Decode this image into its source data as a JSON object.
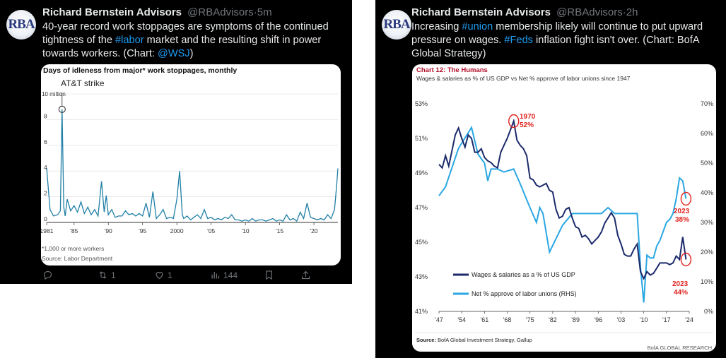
{
  "tweet1": {
    "avatar_text": "RBA",
    "author_name": "Richard Bernstein Advisors",
    "handle": "@RBAdvisors",
    "separator": "·",
    "time": "5m",
    "text_parts": [
      "40-year record work stoppages are symptoms of the continued tightness of the ",
      "#labor",
      " market and the resulting shift in power towards workers.  (Chart: ",
      "@WSJ",
      ")"
    ],
    "retweets": "1",
    "likes": "1",
    "views": "144",
    "chart": {
      "title": "Days of idleness from major* work stoppages, monthly",
      "annotation": "AT&T strike",
      "unit_label": "10 million",
      "y_ticks": [
        "8",
        "6",
        "4",
        "2",
        "0"
      ],
      "x_ticks": [
        "1981",
        "'85",
        "'90",
        "'95",
        "2000",
        "'05",
        "'10",
        "'15",
        "'20"
      ],
      "footnote": "*1,000 or more workers",
      "source": "Source: Labor Department"
    }
  },
  "tweet2": {
    "avatar_text": "RBA",
    "author_name": "Richard Bernstein Advisors",
    "handle": "@RBAdvisors",
    "separator": "·",
    "time": "2h",
    "text_parts": [
      "Increasing ",
      "#union",
      " membership likely will continue to put upward pressure on wages. ",
      "#Feds",
      " inflation fight isn't over. (Chart: BofA Global Strategy)"
    ],
    "chart": {
      "title": "Chart 12: The Humans",
      "subtitle": "Wages & salaries as % of US GDP vs Net % approve of labor unions since 1947",
      "left_ticks": [
        "53%",
        "51%",
        "49%",
        "47%",
        "45%",
        "43%",
        "41%"
      ],
      "right_ticks": [
        "70%",
        "60%",
        "50%",
        "40%",
        "30%",
        "20%",
        "10%",
        "0%"
      ],
      "x_ticks": [
        "'47",
        "'54",
        "'61",
        "'68",
        "'75",
        "'82",
        "'89",
        "'96",
        "'03",
        "'10",
        "'17",
        "'24"
      ],
      "callout_1970_year": "1970",
      "callout_1970_value": "52%",
      "callout_2023_union_year": "2023",
      "callout_2023_union_value": "38%",
      "callout_2023_wage_year": "2023",
      "callout_2023_wage_value": "44%",
      "legend_wages": "Wages & salaries as a % of US GDP",
      "legend_unions": "Net % approve of labor unions (RHS)",
      "source_label": "Source:",
      "source_text": "BofA Global Investment Strategy, Gallup",
      "brand": "BofA GLOBAL RESEARCH"
    }
  },
  "colors": {
    "background": "#000000",
    "text": "#e7e9ea",
    "muted": "#71767b",
    "link": "#1d9bf0",
    "chart1_line": "#1f7fa6",
    "wages_line": "#1b2a6b",
    "unions_line": "#2aa7e2",
    "callout_red": "#e0231f"
  },
  "chart_data": [
    {
      "type": "line",
      "title": "Days of idleness from major* work stoppages, monthly",
      "ylabel": "10 million",
      "ylim": [
        0,
        10
      ],
      "x_range": [
        1981,
        2023.5
      ],
      "series": [
        {
          "x": [
            1981,
            1981.5,
            1982,
            1982.6,
            1983,
            1983.25,
            1983.5,
            1983.7,
            1984,
            1984.5,
            1985,
            1985.5,
            1986,
            1986.5,
            1987,
            1987.5,
            1988,
            1988.5,
            1989,
            1989.4,
            1989.7,
            1990,
            1990.5,
            1991,
            1991.5,
            1992,
            1992.5,
            1993,
            1993.5,
            1994,
            1994.5,
            1995,
            1995.5,
            1996,
            1996.5,
            1997,
            1997.5,
            1998,
            1998.5,
            1999,
            1999.5,
            2000,
            2000.4,
            2000.8,
            2001,
            2001.5,
            2002,
            2002.5,
            2003,
            2003.5,
            2004,
            2004.5,
            2005,
            2005.5,
            2006,
            2006.5,
            2007,
            2007.5,
            2008,
            2008.5,
            2009,
            2009.5,
            2010,
            2010.5,
            2011,
            2011.5,
            2012,
            2012.5,
            2013,
            2013.5,
            2014,
            2014.5,
            2015,
            2015.5,
            2016,
            2016.5,
            2017,
            2017.5,
            2018,
            2018.5,
            2019,
            2019.5,
            2020,
            2020.5,
            2021,
            2021.5,
            2022,
            2022.5,
            2023,
            2023.3,
            2023.5
          ],
          "y": [
            4.2,
            1.0,
            0.5,
            0.6,
            0.9,
            8.8,
            1.2,
            0.5,
            1.8,
            0.9,
            1.3,
            0.8,
            1.6,
            0.7,
            1.2,
            0.6,
            1.0,
            0.5,
            3.2,
            0.8,
            2.1,
            0.6,
            1.0,
            0.4,
            0.5,
            0.5,
            0.9,
            0.6,
            0.7,
            0.5,
            0.7,
            0.5,
            1.5,
            0.4,
            2.4,
            0.3,
            0.6,
            1.0,
            0.3,
            0.4,
            0.3,
            1.8,
            4.0,
            0.6,
            0.3,
            0.5,
            0.2,
            0.4,
            0.6,
            0.3,
            1.0,
            0.3,
            0.4,
            0.2,
            0.3,
            0.2,
            0.4,
            0.3,
            0.6,
            0.2,
            0.2,
            0.1,
            0.2,
            0.1,
            0.3,
            0.1,
            0.2,
            0.2,
            0.1,
            0.2,
            0.3,
            0.1,
            0.2,
            0.1,
            0.6,
            0.2,
            0.3,
            0.1,
            0.8,
            0.3,
            1.5,
            0.4,
            0.3,
            0.2,
            0.3,
            0.2,
            0.6,
            0.3,
            1.0,
            2.8,
            4.2
          ]
        }
      ],
      "annotations": [
        "AT&T strike"
      ]
    },
    {
      "type": "line",
      "title": "Chart 12: The Humans",
      "subtitle": "Wages & salaries as % of US GDP vs Net % approve of labor unions since 1947",
      "x_range": [
        1947,
        2024
      ],
      "ylim_left": [
        41,
        53
      ],
      "ylim_right": [
        0,
        70
      ],
      "series": [
        {
          "name": "Wages & salaries as a % of US GDP",
          "axis": "left",
          "x": [
            1947,
            1948,
            1949,
            1950,
            1951,
            1952,
            1953,
            1954,
            1955,
            1956,
            1957,
            1958,
            1959,
            1960,
            1961,
            1962,
            1963,
            1964,
            1965,
            1966,
            1967,
            1968,
            1969,
            1970,
            1971,
            1972,
            1973,
            1974,
            1975,
            1976,
            1977,
            1978,
            1979,
            1980,
            1981,
            1982,
            1983,
            1984,
            1985,
            1986,
            1987,
            1988,
            1989,
            1990,
            1991,
            1992,
            1993,
            1994,
            1995,
            1996,
            1997,
            1998,
            1999,
            2000,
            2001,
            2002,
            2003,
            2004,
            2005,
            2006,
            2007,
            2008,
            2009,
            2010,
            2011,
            2012,
            2013,
            2014,
            2015,
            2016,
            2017,
            2018,
            2019,
            2020,
            2021,
            2022,
            2023
          ],
          "y": [
            49.5,
            49.3,
            50.0,
            49.4,
            50.3,
            51.2,
            51.6,
            51.0,
            50.5,
            51.2,
            51.0,
            50.2,
            50.2,
            50.4,
            49.9,
            49.7,
            49.6,
            49.4,
            49.3,
            50.2,
            50.6,
            51.0,
            51.5,
            52.0,
            50.9,
            50.6,
            50.4,
            50.0,
            48.7,
            48.6,
            48.3,
            48.2,
            48.3,
            48.4,
            48.0,
            47.9,
            46.9,
            46.4,
            46.5,
            46.9,
            47.0,
            46.4,
            45.9,
            45.8,
            45.3,
            45.4,
            45.2,
            44.9,
            45.1,
            45.3,
            45.6,
            46.1,
            46.4,
            46.7,
            46.4,
            45.4,
            44.9,
            44.3,
            44.2,
            44.2,
            44.6,
            44.9,
            43.3,
            42.9,
            43.3,
            43.1,
            43.2,
            43.5,
            43.8,
            43.8,
            43.8,
            43.7,
            43.8,
            44.2,
            44.0,
            45.3,
            44.0
          ]
        },
        {
          "name": "Net % approve of labor unions (RHS)",
          "axis": "right",
          "x": [
            1947,
            1949,
            1953,
            1957,
            1959,
            1961,
            1962,
            1963,
            1965,
            1967,
            1970,
            1972,
            1975,
            1977,
            1978,
            1979,
            1981,
            1985,
            1988,
            1990,
            1991,
            1997,
            1999,
            2001,
            2003,
            2005,
            2006,
            2007,
            2008,
            2009,
            2010,
            2011,
            2012,
            2013,
            2014,
            2015,
            2016,
            2017,
            2018,
            2019,
            2020,
            2021,
            2022,
            2023
          ],
          "y": [
            39,
            42,
            55,
            62,
            53,
            50,
            44,
            48,
            48,
            47,
            48,
            43,
            35,
            30,
            35,
            33,
            20,
            29,
            33,
            33,
            33,
            33,
            35,
            33,
            33,
            33,
            33,
            33,
            33,
            15,
            3,
            19,
            18,
            18,
            22,
            24,
            27,
            30,
            31,
            33,
            38,
            45,
            44,
            38
          ]
        }
      ],
      "annotations": [
        "1970 52%",
        "2023 38%",
        "2023 44%"
      ]
    }
  ]
}
